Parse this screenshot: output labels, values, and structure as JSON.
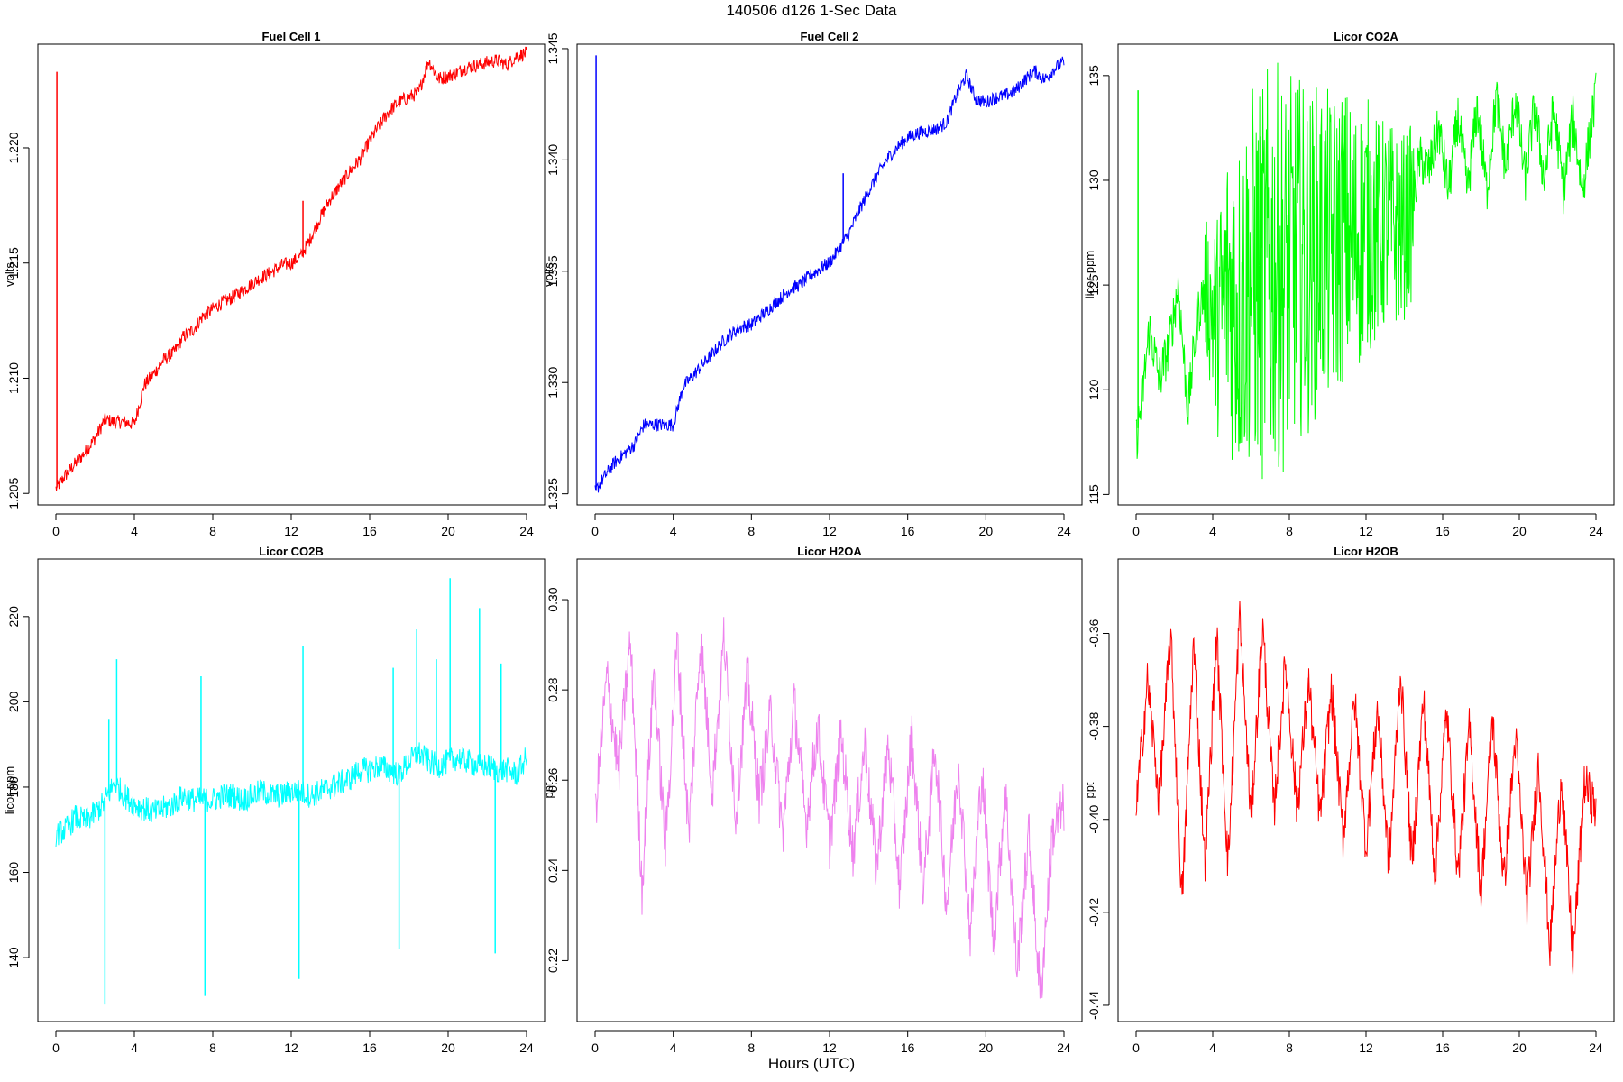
{
  "figure": {
    "title": "140506   d126   1-Sec Data",
    "xlabel": "Hours (UTC)"
  },
  "chart_data": [
    {
      "type": "line",
      "title": "Fuel Cell 1",
      "ylabel": "volts",
      "color": "#ff0000",
      "xlim": [
        0,
        24
      ],
      "ylim": [
        1.2045,
        1.2245
      ],
      "xticks": [
        0,
        4,
        8,
        12,
        16,
        20,
        24
      ],
      "yticks": [
        "1.205",
        "1.210",
        "1.215",
        "1.220"
      ],
      "series": [
        {
          "x": [
            0,
            0.5,
            1,
            1.5,
            2,
            2.5,
            3,
            3.5,
            4,
            4.5,
            5,
            5.5,
            6,
            6.5,
            7,
            7.5,
            8,
            8.5,
            9,
            9.5,
            10,
            10.5,
            11,
            11.5,
            12,
            12.5,
            13,
            13.5,
            14,
            14.5,
            15,
            15.5,
            16,
            16.5,
            17,
            17.5,
            18,
            18.5,
            19,
            19.5,
            20,
            20.5,
            21,
            21.5,
            22,
            22.5,
            23,
            23.5,
            24
          ],
          "y": [
            1.2052,
            1.2058,
            1.2063,
            1.2068,
            1.2074,
            1.2082,
            1.2081,
            1.2081,
            1.208,
            1.2097,
            1.2102,
            1.2108,
            1.2111,
            1.2118,
            1.2121,
            1.2127,
            1.213,
            1.2133,
            1.2135,
            1.2138,
            1.2141,
            1.2144,
            1.2146,
            1.2149,
            1.215,
            1.2153,
            1.2161,
            1.217,
            1.2178,
            1.2184,
            1.219,
            1.2195,
            1.2203,
            1.221,
            1.2216,
            1.222,
            1.2222,
            1.2224,
            1.2238,
            1.223,
            1.2231,
            1.2233,
            1.2235,
            1.2236,
            1.2237,
            1.2238,
            1.2236,
            1.224,
            1.2241
          ],
          "noise": 0.0003
        }
      ],
      "spikes": [
        {
          "x": 0.05,
          "y": 1.2233
        },
        {
          "x": 12.6,
          "y": 1.2177
        }
      ],
      "grid": false
    },
    {
      "type": "line",
      "title": "Fuel Cell 2",
      "ylabel": "volts",
      "color": "#0000ff",
      "xlim": [
        0,
        24
      ],
      "ylim": [
        1.3245,
        1.3452
      ],
      "xticks": [
        0,
        4,
        8,
        12,
        16,
        20,
        24
      ],
      "yticks": [
        "1.325",
        "1.330",
        "1.335",
        "1.340",
        "1.345"
      ],
      "series": [
        {
          "x": [
            0,
            0.5,
            1,
            1.5,
            2,
            2.5,
            3,
            3.5,
            4,
            4.5,
            5,
            5.5,
            6,
            6.5,
            7,
            7.5,
            8,
            8.5,
            9,
            9.5,
            10,
            10.5,
            11,
            11.5,
            12,
            12.5,
            13,
            13.5,
            14,
            14.5,
            15,
            15.5,
            16,
            16.5,
            17,
            17.5,
            18,
            18.5,
            19,
            19.5,
            20,
            20.5,
            21,
            21.5,
            22,
            22.5,
            23,
            23.5,
            24
          ],
          "y": [
            1.3251,
            1.3258,
            1.3264,
            1.3268,
            1.3272,
            1.3281,
            1.3281,
            1.3281,
            1.3281,
            1.3298,
            1.3303,
            1.3308,
            1.3313,
            1.3318,
            1.3322,
            1.3325,
            1.3326,
            1.333,
            1.3334,
            1.3338,
            1.3342,
            1.3344,
            1.3348,
            1.3351,
            1.3354,
            1.336,
            1.3367,
            1.3377,
            1.3386,
            1.3394,
            1.3401,
            1.3406,
            1.341,
            1.3412,
            1.3413,
            1.3414,
            1.3417,
            1.3429,
            1.3438,
            1.3427,
            1.3426,
            1.3428,
            1.3429,
            1.3431,
            1.3436,
            1.344,
            1.3436,
            1.3441,
            1.3444
          ],
          "noise": 0.0003
        }
      ],
      "spikes": [
        {
          "x": 0.05,
          "y": 1.3447
        },
        {
          "x": 12.7,
          "y": 1.3394
        }
      ],
      "grid": false
    },
    {
      "type": "line",
      "title": "Licor CO2A",
      "ylabel": "licor-ppm",
      "color": "#00ff00",
      "xlim": [
        0,
        24
      ],
      "ylim": [
        114.5,
        136.5
      ],
      "xticks": [
        0,
        4,
        8,
        12,
        16,
        20,
        24
      ],
      "yticks": [
        "115",
        "120",
        "125",
        "130",
        "135"
      ],
      "series": [
        {
          "x": [
            0,
            0.3,
            0.7,
            1.2,
            1.7,
            2.2,
            2.7,
            3.2,
            3.6,
            4.2,
            4.8,
            5.4,
            6.0,
            6.6,
            7.2,
            7.8,
            8.4,
            9.0,
            9.6,
            10.2,
            10.8,
            11.4,
            12.0,
            12.6,
            13.2,
            13.8,
            14.4,
            14.8,
            15.3,
            15.8,
            16.3,
            16.8,
            17.3,
            17.8,
            18.3,
            18.8,
            19.3,
            19.8,
            20.3,
            20.8,
            21.3,
            21.8,
            22.3,
            22.8,
            23.3,
            23.8,
            24
          ],
          "y": [
            117.5,
            119.5,
            123.0,
            120.5,
            122.0,
            125.0,
            119.0,
            123.5,
            125.0,
            123.0,
            125.0,
            124.0,
            125.5,
            125.0,
            126.0,
            125.5,
            126.5,
            126.0,
            127.0,
            126.5,
            127.5,
            127.0,
            128.0,
            127.5,
            128.0,
            127.5,
            128.5,
            131.0,
            130.5,
            132.5,
            129.5,
            133.0,
            129.5,
            133.5,
            129.5,
            134.0,
            130.5,
            134.0,
            130.0,
            133.5,
            130.0,
            133.5,
            129.5,
            133.0,
            129.5,
            133.0,
            134.0
          ],
          "noise": 1.2
        }
      ],
      "envelope": [
        {
          "x": 3.5,
          "amp": 1.5
        },
        {
          "x": 5.0,
          "amp": 7.0
        },
        {
          "x": 7.0,
          "amp": 9.0
        },
        {
          "x": 9.0,
          "amp": 7.0
        },
        {
          "x": 11.0,
          "amp": 6.0
        },
        {
          "x": 13.0,
          "amp": 4.0
        },
        {
          "x": 14.5,
          "amp": 3.0
        }
      ],
      "spikes": [
        {
          "x": 0.1,
          "y": 134.3
        }
      ],
      "grid": false
    },
    {
      "type": "line",
      "title": "Licor CO2B",
      "ylabel": "licor-ppm",
      "color": "#00ffff",
      "xlim": [
        0,
        24
      ],
      "ylim": [
        125.0,
        233.5
      ],
      "xticks": [
        0,
        4,
        8,
        12,
        16,
        20,
        24
      ],
      "yticks": [
        "140",
        "160",
        "180",
        "200",
        "220"
      ],
      "series": [
        {
          "x": [
            0,
            0.5,
            1.0,
            1.5,
            2.0,
            2.4,
            3.0,
            3.5,
            4.0,
            4.5,
            5.0,
            5.5,
            6.0,
            6.5,
            7.0,
            7.4,
            8.0,
            8.5,
            9.0,
            9.5,
            10.0,
            10.5,
            11.0,
            11.5,
            12.0,
            12.4,
            13.0,
            13.5,
            14.0,
            14.5,
            15.0,
            15.5,
            16.0,
            16.5,
            17.0,
            17.5,
            18.0,
            18.5,
            19.0,
            19.5,
            20.0,
            20.5,
            21.0,
            21.5,
            22.0,
            22.5,
            23.0,
            23.5,
            24.0
          ],
          "y": [
            169,
            170,
            173,
            172,
            174,
            176,
            181,
            178,
            176,
            175,
            174,
            175,
            176,
            178,
            177,
            177,
            177,
            178,
            178,
            177,
            178,
            179,
            178,
            178,
            179,
            179,
            178,
            179,
            180,
            181,
            182,
            184,
            184,
            185,
            184,
            183,
            186,
            188,
            186,
            185,
            186,
            187,
            186,
            185,
            185,
            184,
            184,
            183,
            187
          ],
          "noise": 3.0
        }
      ],
      "spikes": [
        {
          "x": 2.5,
          "y": 129
        },
        {
          "x": 2.7,
          "y": 196
        },
        {
          "x": 3.1,
          "y": 210
        },
        {
          "x": 7.4,
          "y": 206
        },
        {
          "x": 7.6,
          "y": 131
        },
        {
          "x": 12.4,
          "y": 135
        },
        {
          "x": 12.6,
          "y": 213
        },
        {
          "x": 17.2,
          "y": 208
        },
        {
          "x": 17.5,
          "y": 142
        },
        {
          "x": 18.4,
          "y": 217
        },
        {
          "x": 19.4,
          "y": 210
        },
        {
          "x": 20.1,
          "y": 229
        },
        {
          "x": 21.6,
          "y": 222
        },
        {
          "x": 22.4,
          "y": 141
        },
        {
          "x": 22.7,
          "y": 209
        }
      ],
      "grid": false
    },
    {
      "type": "line",
      "title": "Licor H2OA",
      "ylabel": "ppt",
      "color": "#ee82ee",
      "xlim": [
        0,
        24
      ],
      "ylim": [
        0.2065,
        0.309
      ],
      "xticks": [
        0,
        4,
        8,
        12,
        16,
        20,
        24
      ],
      "yticks": [
        "0.22",
        "0.24",
        "0.26",
        "0.28",
        "0.30"
      ],
      "series": [
        {
          "x": [
            0,
            0.6,
            1.2,
            1.8,
            2.4,
            3.0,
            3.6,
            4.2,
            4.8,
            5.4,
            6.0,
            6.6,
            7.2,
            7.8,
            8.4,
            9.0,
            9.6,
            10.2,
            10.8,
            11.4,
            12.0,
            12.6,
            13.2,
            13.8,
            14.4,
            15.0,
            15.6,
            16.2,
            16.8,
            17.4,
            18.0,
            18.6,
            19.2,
            19.8,
            20.4,
            21.0,
            21.6,
            22.2,
            22.8,
            23.4,
            24.0
          ],
          "y": [
            0.252,
            0.283,
            0.262,
            0.291,
            0.236,
            0.284,
            0.245,
            0.291,
            0.248,
            0.292,
            0.258,
            0.292,
            0.252,
            0.283,
            0.256,
            0.275,
            0.248,
            0.277,
            0.25,
            0.272,
            0.246,
            0.27,
            0.244,
            0.268,
            0.24,
            0.268,
            0.236,
            0.27,
            0.236,
            0.268,
            0.232,
            0.264,
            0.226,
            0.262,
            0.224,
            0.258,
            0.218,
            0.248,
            0.212,
            0.248,
            0.254
          ],
          "noise": 0.006
        }
      ],
      "spikes": [],
      "grid": false
    },
    {
      "type": "line",
      "title": "Licor H2OB",
      "ylabel": "ppt",
      "color": "#ff0000",
      "xlim": [
        0,
        24
      ],
      "ylim": [
        -0.4435,
        -0.344
      ],
      "xticks": [
        0,
        4,
        8,
        12,
        16,
        20,
        24
      ],
      "yticks": [
        "-0.44",
        "-0.42",
        "-0.40",
        "-0.38",
        "-0.36"
      ],
      "series": [
        {
          "x": [
            0,
            0.6,
            1.2,
            1.8,
            2.4,
            3.0,
            3.6,
            4.2,
            4.8,
            5.4,
            6.0,
            6.6,
            7.2,
            7.8,
            8.4,
            9.0,
            9.6,
            10.2,
            10.8,
            11.4,
            12.0,
            12.6,
            13.2,
            13.8,
            14.4,
            15.0,
            15.6,
            16.2,
            16.8,
            17.4,
            18.0,
            18.6,
            19.2,
            19.8,
            20.4,
            21.0,
            21.6,
            22.2,
            22.8,
            23.4,
            24.0
          ],
          "y": [
            -0.398,
            -0.37,
            -0.396,
            -0.36,
            -0.418,
            -0.362,
            -0.41,
            -0.36,
            -0.41,
            -0.356,
            -0.4,
            -0.358,
            -0.398,
            -0.366,
            -0.398,
            -0.37,
            -0.4,
            -0.372,
            -0.404,
            -0.374,
            -0.406,
            -0.376,
            -0.41,
            -0.368,
            -0.41,
            -0.374,
            -0.412,
            -0.376,
            -0.412,
            -0.38,
            -0.416,
            -0.378,
            -0.414,
            -0.382,
            -0.418,
            -0.388,
            -0.428,
            -0.39,
            -0.43,
            -0.392,
            -0.398
          ],
          "noise": 0.005
        }
      ],
      "spikes": [],
      "grid": false
    }
  ]
}
